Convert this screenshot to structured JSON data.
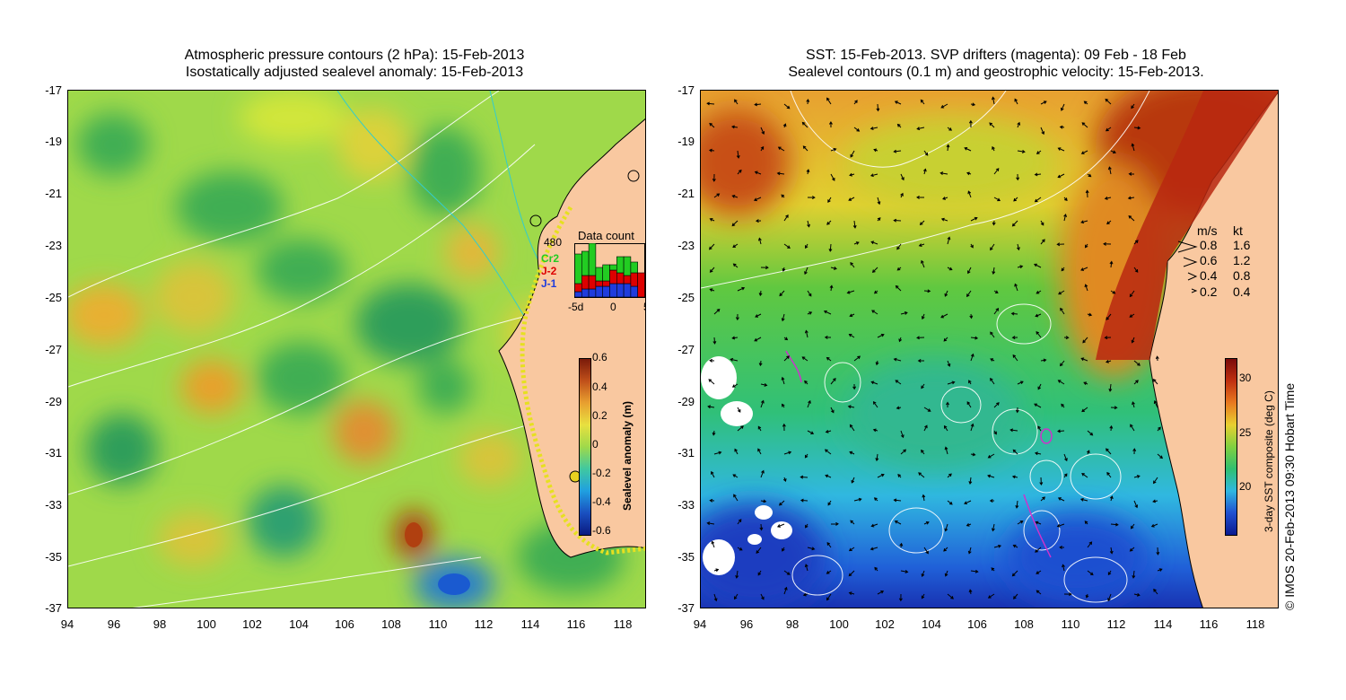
{
  "left_panel": {
    "title_line1": "Atmospheric pressure contours (2 hPa): 15-Feb-2013",
    "title_line2": "Isostatically adjusted sealevel anomaly: 15-Feb-2013",
    "colorbar_label": "Sealevel anomaly (m)",
    "colorbar_ticks": [
      "0.6",
      "0.4",
      "0.2",
      "0",
      "-0.2",
      "-0.4",
      "-0.6"
    ],
    "data_count": {
      "title": "Data count",
      "max_label": "480",
      "legend": [
        {
          "name": "Cr2",
          "color": "#22cc22"
        },
        {
          "name": "J-2",
          "color": "#dd0000"
        },
        {
          "name": "J-1",
          "color": "#1f3cdd"
        }
      ],
      "x_ticks": [
        "-5d",
        "0",
        "5"
      ],
      "bars": [
        {
          "cr2": 0.55,
          "j2": 0.15,
          "j1": 0.1
        },
        {
          "cr2": 0.45,
          "j2": 0.25,
          "j1": 0.15
        },
        {
          "cr2": 0.6,
          "j2": 0.25,
          "j1": 0.15
        },
        {
          "cr2": 0.25,
          "j2": 0.1,
          "j1": 0.2
        },
        {
          "cr2": 0.3,
          "j2": 0.1,
          "j1": 0.2
        },
        {
          "cr2": 0.1,
          "j2": 0.25,
          "j1": 0.25
        },
        {
          "cr2": 0.3,
          "j2": 0.2,
          "j1": 0.25
        },
        {
          "cr2": 0.35,
          "j2": 0.15,
          "j1": 0.25
        },
        {
          "cr2": 0.2,
          "j2": 0.25,
          "j1": 0.2
        },
        {
          "cr2": 0.0,
          "j2": 0.45,
          "j1": 0.0
        }
      ]
    }
  },
  "right_panel": {
    "title_line1": "SST: 15-Feb-2013. SVP drifters (magenta): 09 Feb - 18 Feb",
    "title_line2": "Sealevel contours (0.1 m) and geostrophic velocity: 15-Feb-2013.",
    "colorbar_label": "3-day SST composite (deg C)",
    "colorbar_ticks": [
      "30",
      "25",
      "20"
    ],
    "velocity_legend": {
      "header_ms": "m/s",
      "header_kt": "kt",
      "rows": [
        {
          "ms": "0.8",
          "kt": "1.6"
        },
        {
          "ms": "0.6",
          "kt": "1.2"
        },
        {
          "ms": "0.4",
          "kt": "0.8"
        },
        {
          "ms": "0.2",
          "kt": "0.4"
        }
      ]
    },
    "credit": "© IMOS 20-Feb-2013 09:30 Hobart Time"
  },
  "axes": {
    "y_ticks": [
      "-17",
      "-19",
      "-21",
      "-23",
      "-25",
      "-27",
      "-29",
      "-31",
      "-33",
      "-35",
      "-37"
    ],
    "x_ticks": [
      "94",
      "96",
      "98",
      "100",
      "102",
      "104",
      "106",
      "108",
      "110",
      "112",
      "114",
      "116",
      "118"
    ],
    "lat_range": [
      -37,
      -17
    ],
    "lon_range": [
      94,
      119
    ]
  },
  "colors": {
    "land": "#f9c8a0",
    "ssla_mid": "#9fd94a",
    "ssla_high": "#d08a20",
    "ssla_low": "#1a6ad0",
    "sst_warm": "#c03a10",
    "sst_mid": "#3cc040",
    "sst_cool": "#1840d0",
    "drifter": "#cc33cc"
  }
}
